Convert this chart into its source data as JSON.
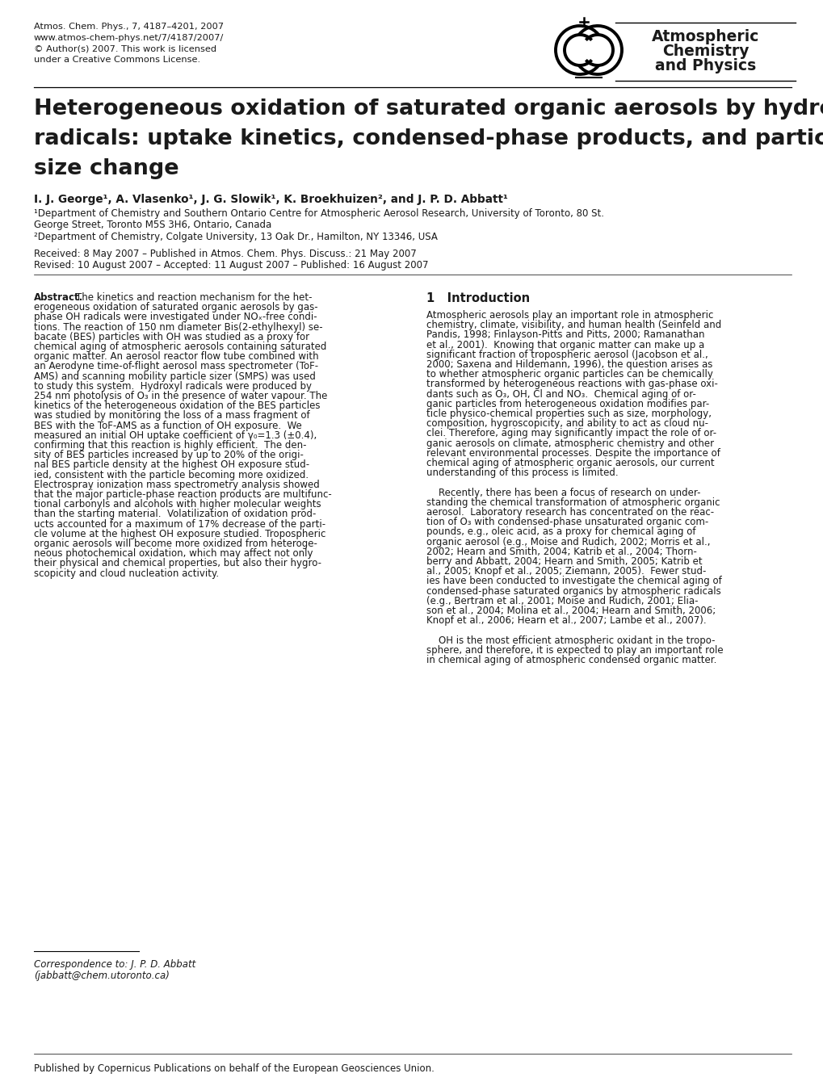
{
  "background_color": "#ffffff",
  "top_left_lines": [
    "Atmos. Chem. Phys., 7, 4187–4201, 2007",
    "www.atmos-chem-phys.net/7/4187/2007/",
    "© Author(s) 2007. This work is licensed",
    "under a Creative Commons License."
  ],
  "journal_name_lines": [
    "Atmospheric",
    "Chemistry",
    "and Physics"
  ],
  "title_line1": "Heterogeneous oxidation of saturated organic aerosols by hydroxyl",
  "title_line2": "radicals: uptake kinetics, condensed-phase products, and particle",
  "title_line3": "size change",
  "authors": "I. J. George¹, A. Vlasenko¹, J. G. Slowik¹, K. Broekhuizen², and J. P. D. Abbatt¹",
  "affil1a": "¹Department of Chemistry and Southern Ontario Centre for Atmospheric Aerosol Research, University of Toronto, 80 St.",
  "affil1b": "George Street, Toronto M5S 3H6, Ontario, Canada",
  "affil2": "²Department of Chemistry, Colgate University, 13 Oak Dr., Hamilton, NY 13346, USA",
  "date1": "Received: 8 May 2007 – Published in Atmos. Chem. Phys. Discuss.: 21 May 2007",
  "date2": "Revised: 10 August 2007 – Accepted: 11 August 2007 – Published: 16 August 2007",
  "abstract_lines": [
    "The kinetics and reaction mechanism for the het-",
    "erogeneous oxidation of saturated organic aerosols by gas-",
    "phase OH radicals were investigated under NOₓ-free condi-",
    "tions. The reaction of 150 nm diameter Bis(2-ethylhexyl) se-",
    "bacate (BES) particles with OH was studied as a proxy for",
    "chemical aging of atmospheric aerosols containing saturated",
    "organic matter. An aerosol reactor flow tube combined with",
    "an Aerodyne time-of-flight aerosol mass spectrometer (ToF-",
    "AMS) and scanning mobility particle sizer (SMPS) was used",
    "to study this system.  Hydroxyl radicals were produced by",
    "254 nm photolysis of O₃ in the presence of water vapour. The",
    "kinetics of the heterogeneous oxidation of the BES particles",
    "was studied by monitoring the loss of a mass fragment of",
    "BES with the ToF-AMS as a function of OH exposure.  We",
    "measured an initial OH uptake coefficient of γ₀=1.3 (±0.4),",
    "confirming that this reaction is highly efficient.  The den-",
    "sity of BES particles increased by up to 20% of the origi-",
    "nal BES particle density at the highest OH exposure stud-",
    "ied, consistent with the particle becoming more oxidized.",
    "Electrospray ionization mass spectrometry analysis showed",
    "that the major particle-phase reaction products are multifunc-",
    "tional carbonyls and alcohols with higher molecular weights",
    "than the starting material.  Volatilization of oxidation prod-",
    "ucts accounted for a maximum of 17% decrease of the parti-",
    "cle volume at the highest OH exposure studied. Tropospheric",
    "organic aerosols will become more oxidized from heteroge-",
    "neous photochemical oxidation, which may affect not only",
    "their physical and chemical properties, but also their hygro-",
    "scopicity and cloud nucleation activity."
  ],
  "intro_lines": [
    "Atmospheric aerosols play an important role in atmospheric",
    "chemistry, climate, visibility, and human health (Seinfeld and",
    "Pandis, 1998; Finlayson-Pitts and Pitts, 2000; Ramanathan",
    "et al., 2001).  Knowing that organic matter can make up a",
    "significant fraction of tropospheric aerosol (Jacobson et al.,",
    "2000; Saxena and Hildemann, 1996), the question arises as",
    "to whether atmospheric organic particles can be chemically",
    "transformed by heterogeneous reactions with gas-phase oxi-",
    "dants such as O₃, OH, Cl and NO₃.  Chemical aging of or-",
    "ganic particles from heterogeneous oxidation modifies par-",
    "ticle physico-chemical properties such as size, morphology,",
    "composition, hygroscopicity, and ability to act as cloud nu-",
    "clei. Therefore, aging may significantly impact the role of or-",
    "ganic aerosols on climate, atmospheric chemistry and other",
    "relevant environmental processes. Despite the importance of",
    "chemical aging of atmospheric organic aerosols, our current",
    "understanding of this process is limited.",
    "",
    "    Recently, there has been a focus of research on under-",
    "standing the chemical transformation of atmospheric organic",
    "aerosol.  Laboratory research has concentrated on the reac-",
    "tion of O₃ with condensed-phase unsaturated organic com-",
    "pounds, e.g., oleic acid, as a proxy for chemical aging of",
    "organic aerosol (e.g., Moise and Rudich, 2002; Morris et al.,",
    "2002; Hearn and Smith, 2004; Katrib et al., 2004; Thorn-",
    "berry and Abbatt, 2004; Hearn and Smith, 2005; Katrib et",
    "al., 2005; Knopf et al., 2005; Ziemann, 2005).  Fewer stud-",
    "ies have been conducted to investigate the chemical aging of",
    "condensed-phase saturated organics by atmospheric radicals",
    "(e.g., Bertram et al., 2001; Moise and Rudich, 2001; Elia-",
    "son et al., 2004; Molina et al., 2004; Hearn and Smith, 2006;",
    "Knopf et al., 2006; Hearn et al., 2007; Lambe et al., 2007).",
    "",
    "    OH is the most efficient atmospheric oxidant in the tropo-",
    "sphere, and therefore, it is expected to play an important role",
    "in chemical aging of atmospheric condensed organic matter."
  ],
  "corr_line1": "Correspondence to: J. P. D. Abbatt",
  "corr_line2": "(jabbatt@chem.utoronto.ca)",
  "footer": "Published by Copernicus Publications on behalf of the European Geosciences Union."
}
